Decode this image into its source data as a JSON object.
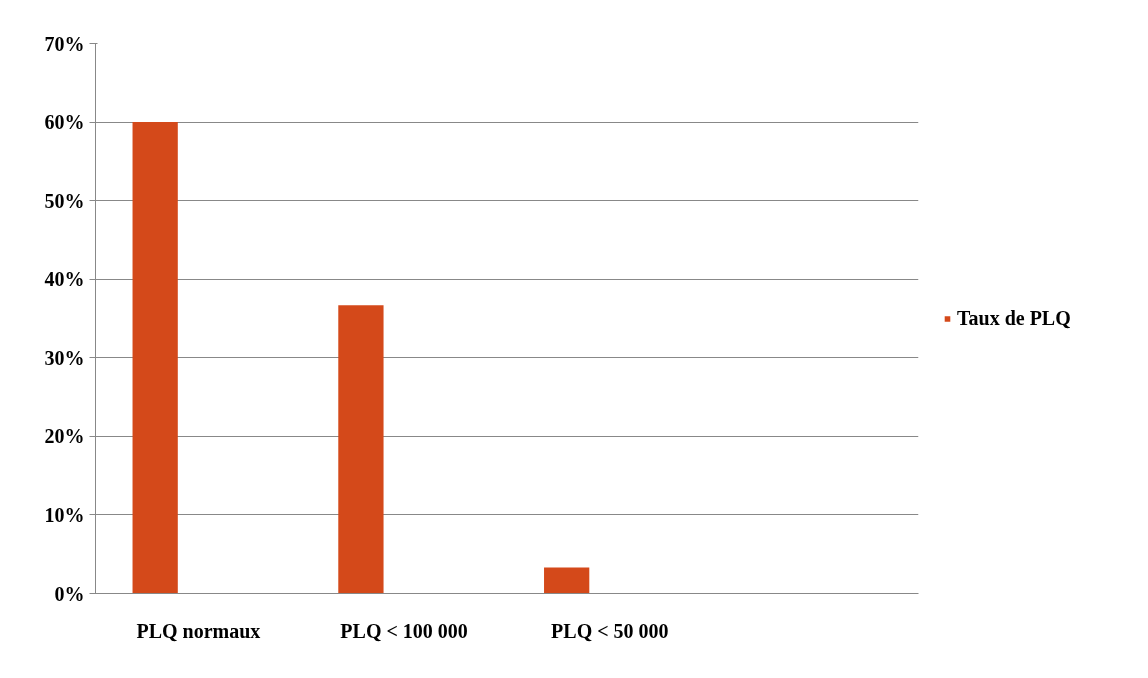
{
  "chart_data": {
    "type": "bar",
    "categories": [
      "PLQ normaux",
      "PLQ < 100 000",
      "PLQ < 50 000",
      null
    ],
    "series": [
      {
        "name": "Taux de PLQ",
        "color": "#d4491a",
        "values": [
          60,
          36.7,
          3.3,
          null
        ]
      }
    ],
    "ylim": [
      0,
      70
    ],
    "yticks": [
      {
        "value": 0,
        "label": "0%"
      },
      {
        "value": 10,
        "label": "10%"
      },
      {
        "value": 20,
        "label": "20%"
      },
      {
        "value": 30,
        "label": "30%"
      },
      {
        "value": 40,
        "label": "40%"
      },
      {
        "value": 50,
        "label": "50%"
      },
      {
        "value": 60,
        "label": "60%"
      },
      {
        "value": 70,
        "label": "70%"
      }
    ],
    "grid": "y",
    "legend": "right"
  }
}
